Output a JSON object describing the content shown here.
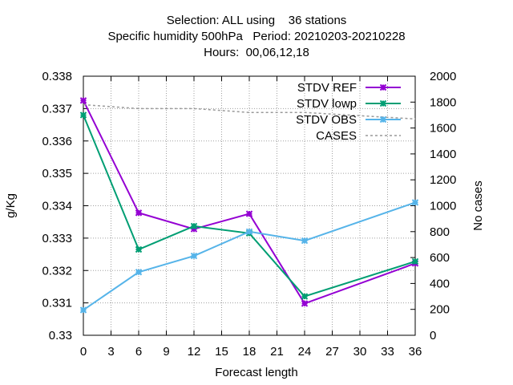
{
  "chart_data": {
    "type": "line",
    "title_lines": [
      "Selection: ALL using    36 stations",
      "Specific humidity 500hPa   Period: 20210203-20210228",
      "Hours:  00,06,12,18"
    ],
    "xlabel": "Forecast length",
    "ylabel": "g/Kg",
    "y2label": "No cases",
    "x": [
      0,
      6,
      12,
      18,
      24,
      36
    ],
    "xlim": [
      0,
      36
    ],
    "xticks": [
      0,
      3,
      6,
      9,
      12,
      15,
      18,
      21,
      24,
      27,
      30,
      33,
      36
    ],
    "ylim": [
      0.33,
      0.338
    ],
    "yticks": [
      "0.33",
      "0.331",
      "0.332",
      "0.333",
      "0.334",
      "0.335",
      "0.336",
      "0.337",
      "0.338"
    ],
    "y2lim": [
      0,
      2000
    ],
    "y2ticks": [
      "0",
      "200",
      "400",
      "600",
      "800",
      "1000",
      "1200",
      "1400",
      "1600",
      "1800",
      "2000"
    ],
    "grid": true,
    "legend_position": "top-right",
    "series": [
      {
        "name": "STDV REF",
        "axis": "y",
        "color": "#9400d3",
        "style": "line-marker",
        "values": [
          0.33725,
          0.33378,
          0.33328,
          0.33375,
          0.33098,
          0.33222
        ]
      },
      {
        "name": "STDV lowp",
        "axis": "y",
        "color": "#009e73",
        "style": "line-marker",
        "values": [
          0.3368,
          0.33265,
          0.33337,
          0.33315,
          0.3312,
          0.33228
        ]
      },
      {
        "name": "STDV OBS",
        "axis": "y",
        "color": "#56b4e9",
        "style": "line-marker",
        "values": [
          0.33078,
          0.33195,
          0.33245,
          0.3332,
          0.33292,
          0.3341
        ]
      },
      {
        "name": "CASES",
        "axis": "y2",
        "color": "#999999",
        "style": "dashed",
        "values": [
          1780,
          1750,
          1750,
          1720,
          1720,
          1670
        ]
      }
    ]
  }
}
